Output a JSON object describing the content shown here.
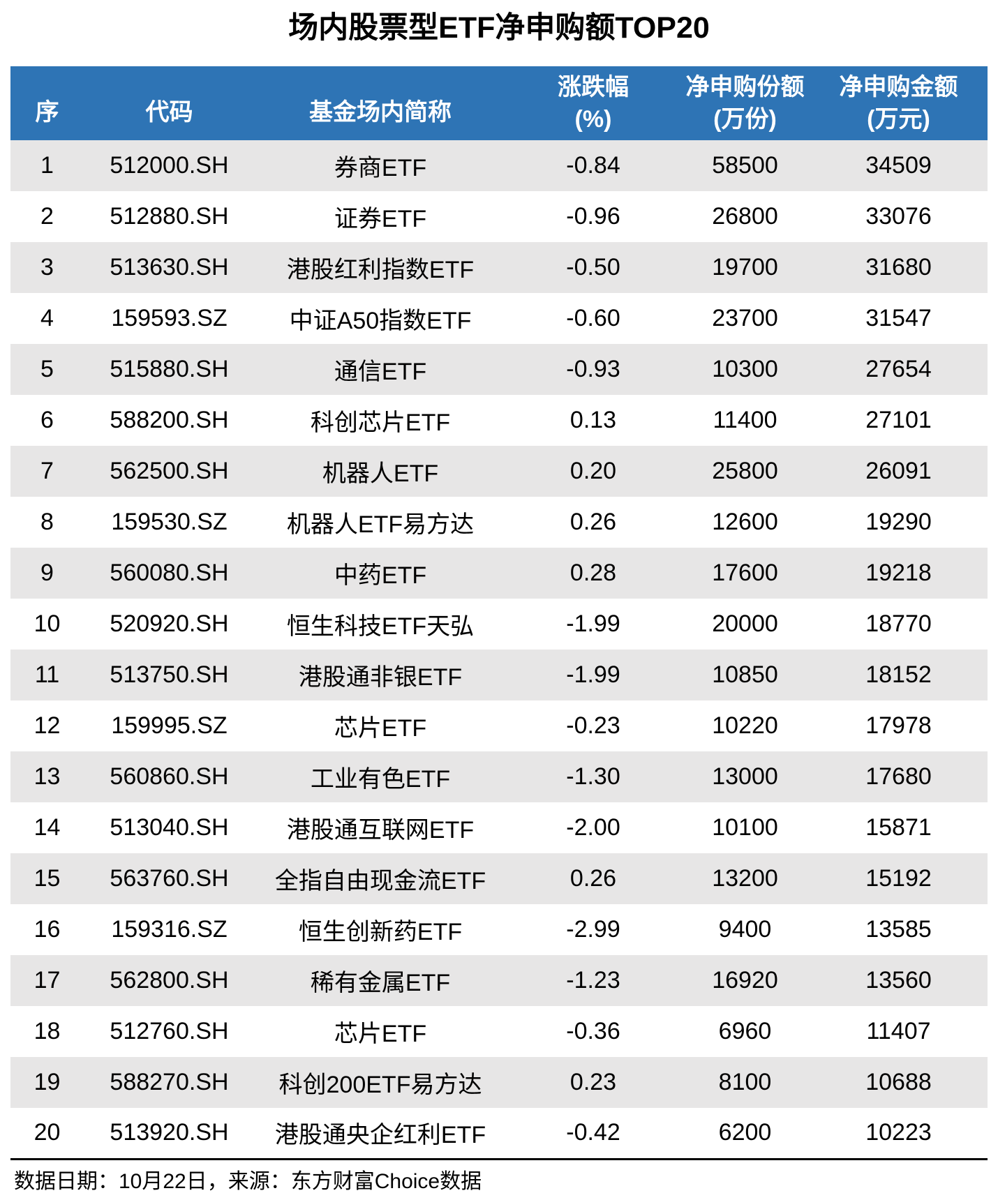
{
  "title": "场内股票型ETF净申购额TOP20",
  "colors": {
    "header_bg": "#2E74B5",
    "header_text": "#FFFFFF",
    "stripe_bg": "#E7E6E6",
    "row_bg": "#FFFFFF",
    "text_color": "#000000",
    "rule_color": "#000000"
  },
  "chart_data": {
    "type": "table",
    "title": "场内股票型ETF净申购额TOP20",
    "columns": [
      {
        "key": "rank",
        "label": "序",
        "unit": ""
      },
      {
        "key": "code",
        "label": "代码",
        "unit": ""
      },
      {
        "key": "name",
        "label": "基金场内简称",
        "unit": ""
      },
      {
        "key": "change",
        "label": "涨跌幅",
        "unit": "(%)"
      },
      {
        "key": "shares",
        "label": "净申购份额",
        "unit": "(万份)"
      },
      {
        "key": "amount",
        "label": "净申购金额",
        "unit": "(万元)"
      }
    ],
    "rows": [
      [
        "1",
        "512000.SH",
        "券商ETF",
        "-0.84",
        "58500",
        "34509"
      ],
      [
        "2",
        "512880.SH",
        "证券ETF",
        "-0.96",
        "26800",
        "33076"
      ],
      [
        "3",
        "513630.SH",
        "港股红利指数ETF",
        "-0.50",
        "19700",
        "31680"
      ],
      [
        "4",
        "159593.SZ",
        "中证A50指数ETF",
        "-0.60",
        "23700",
        "31547"
      ],
      [
        "5",
        "515880.SH",
        "通信ETF",
        "-0.93",
        "10300",
        "27654"
      ],
      [
        "6",
        "588200.SH",
        "科创芯片ETF",
        "0.13",
        "11400",
        "27101"
      ],
      [
        "7",
        "562500.SH",
        "机器人ETF",
        "0.20",
        "25800",
        "26091"
      ],
      [
        "8",
        "159530.SZ",
        "机器人ETF易方达",
        "0.26",
        "12600",
        "19290"
      ],
      [
        "9",
        "560080.SH",
        "中药ETF",
        "0.28",
        "17600",
        "19218"
      ],
      [
        "10",
        "520920.SH",
        "恒生科技ETF天弘",
        "-1.99",
        "20000",
        "18770"
      ],
      [
        "11",
        "513750.SH",
        "港股通非银ETF",
        "-1.99",
        "10850",
        "18152"
      ],
      [
        "12",
        "159995.SZ",
        "芯片ETF",
        "-0.23",
        "10220",
        "17978"
      ],
      [
        "13",
        "560860.SH",
        "工业有色ETF",
        "-1.30",
        "13000",
        "17680"
      ],
      [
        "14",
        "513040.SH",
        "港股通互联网ETF",
        "-2.00",
        "10100",
        "15871"
      ],
      [
        "15",
        "563760.SH",
        "全指自由现金流ETF",
        "0.26",
        "13200",
        "15192"
      ],
      [
        "16",
        "159316.SZ",
        "恒生创新药ETF",
        "-2.99",
        "9400",
        "13585"
      ],
      [
        "17",
        "562800.SH",
        "稀有金属ETF",
        "-1.23",
        "16920",
        "13560"
      ],
      [
        "18",
        "512760.SH",
        "芯片ETF",
        "-0.36",
        "6960",
        "11407"
      ],
      [
        "19",
        "588270.SH",
        "科创200ETF易方达",
        "0.23",
        "8100",
        "10688"
      ],
      [
        "20",
        "513920.SH",
        "港股通央企红利ETF",
        "-0.42",
        "6200",
        "10223"
      ]
    ]
  },
  "footer": {
    "note": "数据日期：10月22日，来源：东方财富Choice数据"
  }
}
